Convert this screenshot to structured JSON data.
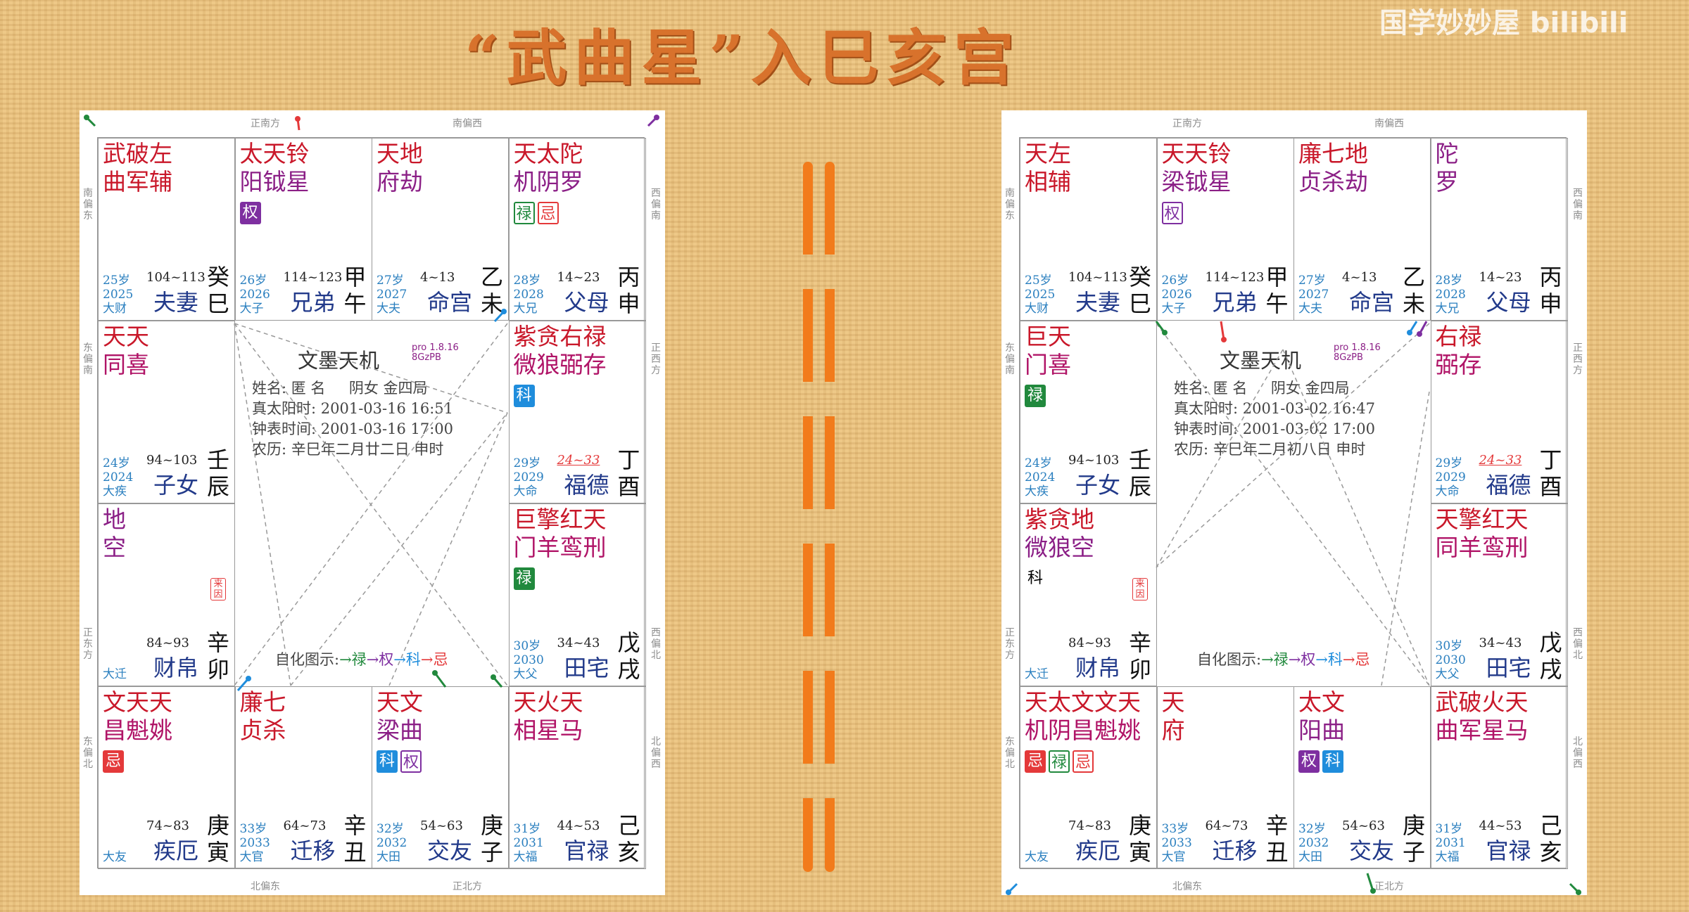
{
  "title": "“武曲星”入巳亥宫",
  "watermark": "国学妙妙屋 bilibili",
  "panels": [
    {
      "directions": {
        "top_left": "正南方",
        "top_right": "南偏西",
        "bottom_left": "北偏东",
        "bottom_right": "正北方",
        "left_top": "南偏东",
        "left_mid1": "东偏南",
        "left_mid2": "正东方",
        "left_bottom": "东偏北",
        "right_top": "西偏南",
        "right_mid1": "正西方",
        "right_mid2": "西偏北",
        "right_bottom": "北偏西"
      },
      "center": {
        "app": "文墨天机",
        "version": "pro 1.8.16",
        "code": "8GzPB",
        "name": "姓名: 匿 名",
        "gender": "阴女 金四局",
        "true_solar": "真太阳时: 2001-03-16 16:51",
        "clock": "钟表时间: 2001-03-16 17:00",
        "lunar": "农历: 辛巳年二月廿二日 申时",
        "legend_prefix": "自化图示:",
        "legend_lu": "→禄",
        "legend_quan": "→权",
        "legend_ke": "→科",
        "legend_ji": "→忌"
      },
      "cells": [
        {
          "stars": [
            "武破左",
            "曲军辅"
          ],
          "colors": [
            "red",
            "red"
          ],
          "badges": [],
          "age": "25岁",
          "year": "2025",
          "lim": "大财",
          "range": "104~113",
          "palace": "夫妻",
          "gz": [
            "癸",
            "巳"
          ]
        },
        {
          "stars": [
            "太天铃",
            "阳钺星"
          ],
          "colors": [
            "red",
            "purple"
          ],
          "badges": [
            {
              "t": "权",
              "c": "b-quan"
            }
          ],
          "age": "26岁",
          "year": "2026",
          "lim": "大子",
          "range": "114~123",
          "palace": "兄弟",
          "gz": [
            "甲",
            "午"
          ]
        },
        {
          "stars": [
            "天地",
            "府劫"
          ],
          "colors": [
            "red",
            "purple"
          ],
          "badges": [],
          "age": "27岁",
          "year": "2027",
          "lim": "大夫",
          "range": "4~13",
          "palace": "命宫",
          "gz": [
            "乙",
            "未"
          ]
        },
        {
          "stars": [
            "天太陀",
            "机阴罗"
          ],
          "colors": [
            "red",
            "purple"
          ],
          "badges": [
            {
              "t": "禄",
              "c": "b-lu-o"
            },
            {
              "t": "忌",
              "c": "b-ji-o"
            }
          ],
          "age": "28岁",
          "year": "2028",
          "lim": "大兄",
          "range": "14~23",
          "palace": "父母",
          "gz": [
            "丙",
            "申"
          ]
        },
        {
          "stars": [
            "天天",
            "同喜"
          ],
          "colors": [
            "red",
            "mag"
          ],
          "badges": [],
          "age": "24岁",
          "year": "2024",
          "lim": "大疾",
          "range": "94~103",
          "palace": "子女",
          "gz": [
            "壬",
            "辰"
          ]
        },
        {
          "stars": [
            "紫贪右禄",
            "微狼弼存"
          ],
          "colors": [
            "red",
            "mag"
          ],
          "badges": [
            {
              "t": "科",
              "c": "b-ke"
            }
          ],
          "age": "29岁",
          "year": "2029",
          "lim": "大命",
          "range": "24~33",
          "range_red": true,
          "palace": "福德",
          "gz": [
            "丁",
            "酉"
          ]
        },
        {
          "stars": [
            "地",
            "空"
          ],
          "colors": [
            "purple",
            "purple"
          ],
          "badges": [],
          "laiyin": "来因",
          "age": "",
          "year": "",
          "lim": "大迁",
          "range": "84~93",
          "palace": "财帛",
          "gz": [
            "辛",
            "卯"
          ]
        },
        {
          "stars": [
            "巨擎红天",
            "门羊鸾刑"
          ],
          "colors": [
            "red",
            "mag"
          ],
          "badges": [
            {
              "t": "禄",
              "c": "b-lu"
            }
          ],
          "age": "30岁",
          "year": "2030",
          "lim": "大父",
          "range": "34~43",
          "palace": "田宅",
          "gz": [
            "戊",
            "戌"
          ]
        },
        {
          "stars": [
            "文天天",
            "昌魁姚"
          ],
          "colors": [
            "red",
            "mag"
          ],
          "badges": [
            {
              "t": "忌",
              "c": "b-ji"
            }
          ],
          "age": "",
          "year": "",
          "lim": "大友",
          "range": "74~83",
          "palace": "疾厄",
          "gz": [
            "庚",
            "寅"
          ]
        },
        {
          "stars": [
            "廉七",
            "贞杀"
          ],
          "colors": [
            "red",
            "red"
          ],
          "badges": [],
          "age": "33岁",
          "year": "2033",
          "lim": "大官",
          "range": "64~73",
          "palace": "迁移",
          "gz": [
            "辛",
            "丑"
          ]
        },
        {
          "stars": [
            "天文",
            "梁曲"
          ],
          "colors": [
            "red",
            "purple"
          ],
          "badges": [
            {
              "t": "科",
              "c": "b-ke"
            },
            {
              "t": "权",
              "c": "b-quan-o"
            }
          ],
          "age": "32岁",
          "year": "2032",
          "lim": "大田",
          "range": "54~63",
          "palace": "交友",
          "gz": [
            "庚",
            "子"
          ]
        },
        {
          "stars": [
            "天火天",
            "相星马"
          ],
          "colors": [
            "red",
            "mag"
          ],
          "badges": [],
          "age": "31岁",
          "year": "2031",
          "lim": "大福",
          "range": "44~53",
          "palace": "官禄",
          "gz": [
            "己",
            "亥"
          ]
        }
      ]
    },
    {
      "directions": {
        "top_left": "正南方",
        "top_right": "南偏西",
        "bottom_left": "北偏东",
        "bottom_right": "正北方",
        "left_top": "南偏东",
        "left_mid1": "东偏南",
        "left_mid2": "正东方",
        "left_bottom": "东偏北",
        "right_top": "西偏南",
        "right_mid1": "正西方",
        "right_mid2": "西偏北",
        "right_bottom": "北偏西"
      },
      "center": {
        "app": "文墨天机",
        "version": "pro 1.8.16",
        "code": "8GzPB",
        "name": "姓名: 匿 名",
        "gender": "阴女 金四局",
        "true_solar": "真太阳时: 2001-03-02 16:47",
        "clock": "钟表时间: 2001-03-02 17:00",
        "lunar": "农历: 辛巳年二月初八日 申时",
        "legend_prefix": "自化图示:",
        "legend_lu": "→禄",
        "legend_quan": "→权",
        "legend_ke": "→科",
        "legend_ji": "→忌"
      },
      "cells": [
        {
          "stars": [
            "天左",
            "相辅"
          ],
          "colors": [
            "red",
            "red"
          ],
          "badges": [],
          "age": "25岁",
          "year": "2025",
          "lim": "大财",
          "range": "104~113",
          "palace": "夫妻",
          "gz": [
            "癸",
            "巳"
          ]
        },
        {
          "stars": [
            "天天铃",
            "梁钺星"
          ],
          "colors": [
            "red",
            "purple"
          ],
          "badges": [
            {
              "t": "权",
              "c": "b-quan-o"
            }
          ],
          "age": "26岁",
          "year": "2026",
          "lim": "大子",
          "range": "114~123",
          "palace": "兄弟",
          "gz": [
            "甲",
            "午"
          ]
        },
        {
          "stars": [
            "廉七地",
            "贞杀劫"
          ],
          "colors": [
            "red",
            "purple"
          ],
          "badges": [],
          "age": "27岁",
          "year": "2027",
          "lim": "大夫",
          "range": "4~13",
          "palace": "命宫",
          "gz": [
            "乙",
            "未"
          ]
        },
        {
          "stars": [
            "陀",
            "罗"
          ],
          "colors": [
            "purple",
            "purple"
          ],
          "badges": [],
          "age": "28岁",
          "year": "2028",
          "lim": "大兄",
          "range": "14~23",
          "palace": "父母",
          "gz": [
            "丙",
            "申"
          ]
        },
        {
          "stars": [
            "巨天",
            "门喜"
          ],
          "colors": [
            "red",
            "mag"
          ],
          "badges": [
            {
              "t": "禄",
              "c": "b-lu"
            }
          ],
          "age": "24岁",
          "year": "2024",
          "lim": "大疾",
          "range": "94~103",
          "palace": "子女",
          "gz": [
            "壬",
            "辰"
          ]
        },
        {
          "stars": [
            "右禄",
            "弼存"
          ],
          "colors": [
            "red",
            "mag"
          ],
          "badges": [],
          "age": "29岁",
          "year": "2029",
          "lim": "大命",
          "range": "24~33",
          "range_red": true,
          "palace": "福德",
          "gz": [
            "丁",
            "酉"
          ]
        },
        {
          "stars": [
            "紫贪地",
            "微狼空"
          ],
          "colors": [
            "red",
            "purple"
          ],
          "badges": [
            {
              "t": "科",
              "c": "b-ke-o"
            }
          ],
          "laiyin": "来因",
          "age": "",
          "year": "",
          "lim": "大迁",
          "range": "84~93",
          "palace": "财帛",
          "gz": [
            "辛",
            "卯"
          ]
        },
        {
          "stars": [
            "天擎红天",
            "同羊鸾刑"
          ],
          "colors": [
            "red",
            "mag"
          ],
          "badges": [],
          "age": "30岁",
          "year": "2030",
          "lim": "大父",
          "range": "34~43",
          "palace": "田宅",
          "gz": [
            "戊",
            "戌"
          ]
        },
        {
          "stars": [
            "天太文文天",
            "机阴昌魁姚"
          ],
          "colors": [
            "red",
            "mag"
          ],
          "badges": [
            {
              "t": "忌",
              "c": "b-ji"
            },
            {
              "t": "禄",
              "c": "b-lu-o"
            },
            {
              "t": "忌",
              "c": "b-ji-o"
            }
          ],
          "age": "",
          "year": "",
          "lim": "大友",
          "range": "74~83",
          "palace": "疾厄",
          "gz": [
            "庚",
            "寅"
          ]
        },
        {
          "stars": [
            "天",
            "府"
          ],
          "colors": [
            "red",
            "red"
          ],
          "badges": [],
          "age": "33岁",
          "year": "2033",
          "lim": "大官",
          "range": "64~73",
          "palace": "迁移",
          "gz": [
            "辛",
            "丑"
          ]
        },
        {
          "stars": [
            "太文",
            "阳曲"
          ],
          "colors": [
            "red",
            "purple"
          ],
          "badges": [
            {
              "t": "权",
              "c": "b-quan"
            },
            {
              "t": "科",
              "c": "b-ke"
            }
          ],
          "age": "32岁",
          "year": "2032",
          "lim": "大田",
          "range": "54~63",
          "palace": "交友",
          "gz": [
            "庚",
            "子"
          ]
        },
        {
          "stars": [
            "武破火天",
            "曲军星马"
          ],
          "colors": [
            "red",
            "mag"
          ],
          "badges": [],
          "age": "31岁",
          "year": "2031",
          "lim": "大福",
          "range": "44~53",
          "palace": "官禄",
          "gz": [
            "己",
            "亥"
          ]
        }
      ]
    }
  ]
}
